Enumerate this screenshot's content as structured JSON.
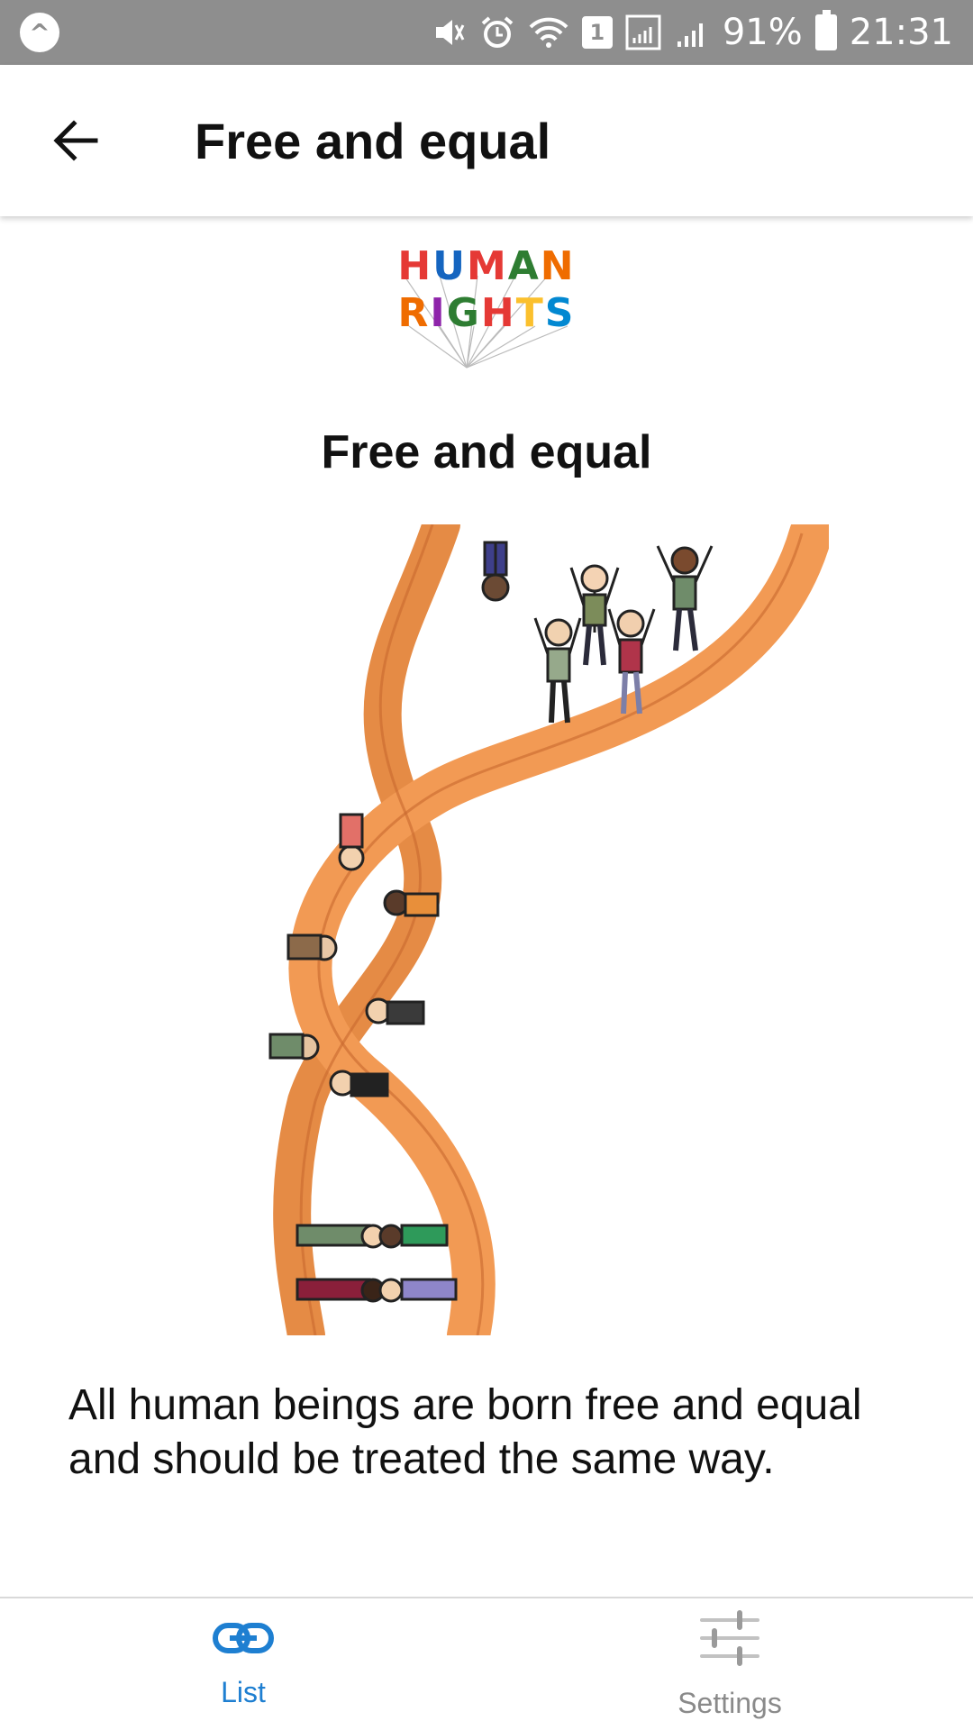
{
  "status_bar": {
    "app_badge": "^",
    "sim_slot": "1",
    "battery": "91%",
    "time": "21:31"
  },
  "app_bar": {
    "title": "Free and equal"
  },
  "content": {
    "logo": {
      "line1": [
        "H",
        "U",
        "M",
        "A",
        "N"
      ],
      "line2": [
        "R",
        "I",
        "G",
        "H",
        "T",
        "S"
      ],
      "line1_colors": [
        "#e53935",
        "#1565c0",
        "#e53935",
        "#2e7d32",
        "#ef6c00"
      ],
      "line2_colors": [
        "#ef6c00",
        "#8e24aa",
        "#2e7d32",
        "#e53935",
        "#fbc02d",
        "#0288d1"
      ]
    },
    "heading": "Free and equal",
    "body_text": "All human beings are born free and equal and should be treated the same way."
  },
  "bottom_nav": {
    "items": [
      {
        "label": "List",
        "icon": "link-icon",
        "active": true,
        "color": "#1e7fd1"
      },
      {
        "label": "Settings",
        "icon": "sliders-icon",
        "active": false,
        "color": "#8a8a8a"
      }
    ]
  }
}
